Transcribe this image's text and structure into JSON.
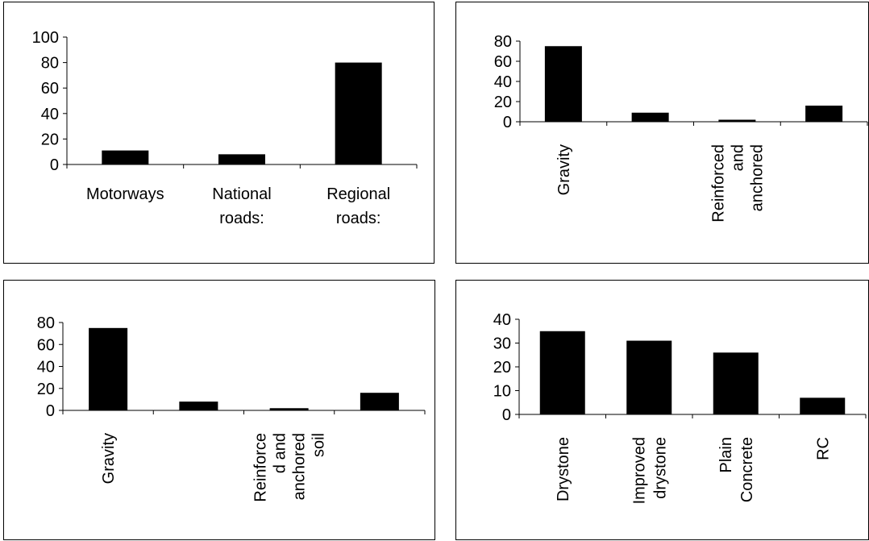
{
  "chart_data": [
    {
      "type": "bar",
      "categories": [
        [
          "Motorways"
        ],
        [
          "National",
          "roads:"
        ],
        [
          "Regional",
          "roads:"
        ]
      ],
      "values": [
        11,
        8,
        80
      ],
      "ylim": [
        0,
        100
      ],
      "yticks": [
        0,
        20,
        40,
        60,
        80,
        100
      ],
      "label_orientation": "horizontal",
      "bar_color": "#000000"
    },
    {
      "type": "bar",
      "categories": [
        [
          "Gravity"
        ],
        [],
        [
          "Reinforced",
          "and",
          "anchored"
        ],
        []
      ],
      "values": [
        75,
        9,
        2,
        16
      ],
      "ylim": [
        0,
        80
      ],
      "yticks": [
        0,
        20,
        40,
        60,
        80
      ],
      "label_orientation": "vertical",
      "bar_color": "#000000"
    },
    {
      "type": "bar",
      "categories": [
        [
          "Gravity"
        ],
        [],
        [
          "Reinforce",
          "d and",
          "anchored",
          "soil"
        ],
        []
      ],
      "values": [
        75,
        8,
        2,
        16
      ],
      "ylim": [
        0,
        80
      ],
      "yticks": [
        0,
        20,
        40,
        60,
        80
      ],
      "label_orientation": "vertical",
      "bar_color": "#000000"
    },
    {
      "type": "bar",
      "categories": [
        [
          "Drystone"
        ],
        [
          "Improved",
          "drystone"
        ],
        [
          "Plain",
          "Concrete"
        ],
        [
          "RC"
        ]
      ],
      "values": [
        35,
        31,
        26,
        7
      ],
      "ylim": [
        0,
        40
      ],
      "yticks": [
        0,
        10,
        20,
        30,
        40
      ],
      "label_orientation": "vertical",
      "bar_color": "#000000"
    }
  ]
}
